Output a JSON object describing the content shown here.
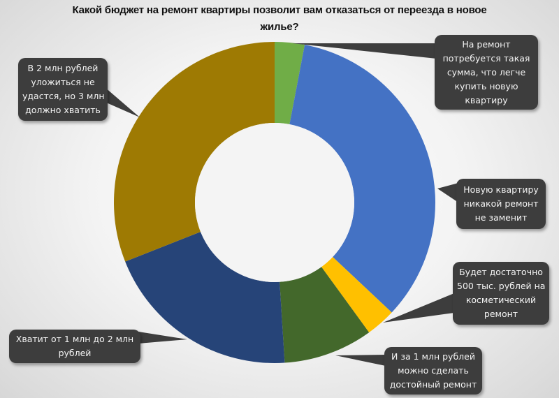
{
  "title": "Какой бюджет на ремонт квартиры позволит вам отказаться от переезда в новое жилье?",
  "title_lines": [
    "Какой бюджет на ремонт квартиры позволит вам отказаться от переезда в новое",
    "жилье?"
  ],
  "chart_data": {
    "type": "pie",
    "variant": "donut",
    "title": "Какой бюджет на ремонт квартиры позволит вам отказаться от переезда в новое жилье?",
    "start_angle_deg": 0,
    "direction": "clockwise",
    "hole_ratio": 0.5,
    "legend": "none (callout labels)",
    "categories": [
      "На ремонт потребуется такая сумма, что легче купить новую квартиру",
      "Новую квартиру никакой ремонт не заменит",
      "Будет достаточно 500 тыс. рублей на косметический ремонт",
      "И за 1 млн рублей можно сделать достойный ремонт",
      "Хватит от 1 млн до 2 млн рублей",
      "В 2 млн рублей уложиться не удастся, но 3 млн должно хватить"
    ],
    "values": [
      3,
      34,
      3,
      9,
      20,
      31
    ],
    "unit": "% (estimated from slice angles)",
    "colors": [
      "#70ad47",
      "#4472c4",
      "#ffc000",
      "#43682b",
      "#264478",
      "#9e7a03"
    ]
  },
  "callouts": [
    {
      "id": "top-right",
      "lines": [
        "На ремонт",
        "потребуется такая",
        "сумма, что легче",
        "купить новую",
        "квартиру"
      ]
    },
    {
      "id": "right",
      "lines": [
        "Новую квартиру",
        "никакой ремонт",
        "не заменит"
      ]
    },
    {
      "id": "lower-right",
      "lines": [
        "Будет достаточно",
        "500 тыс. рублей на",
        "косметический",
        "ремонт"
      ]
    },
    {
      "id": "bottom-right",
      "lines": [
        "И за 1 млн рублей",
        "можно сделать",
        "достойный ремонт"
      ]
    },
    {
      "id": "bottom-left",
      "lines": [
        "Хватит от 1 млн до 2 млн",
        "рублей"
      ]
    },
    {
      "id": "top-left",
      "lines": [
        "В 2 млн рублей",
        "уложиться не",
        "удастся, но 3 млн",
        "должно хватить"
      ]
    }
  ]
}
